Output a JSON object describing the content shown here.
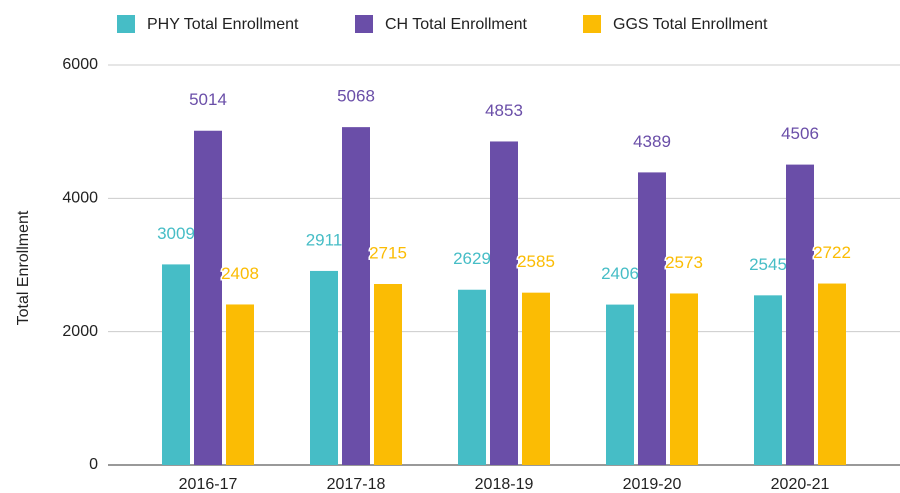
{
  "chart_data": {
    "type": "bar",
    "y_label": "Total Enrollment",
    "categories": [
      "2016-17",
      "2017-18",
      "2018-19",
      "2019-20",
      "2020-21"
    ],
    "series": [
      {
        "name": "PHY Total Enrollment",
        "color": "#46bdc6",
        "values": [
          3009,
          2911,
          2629,
          2406,
          2545
        ]
      },
      {
        "name": "CH Total Enrollment",
        "color": "#6a4ea8",
        "values": [
          5014,
          5068,
          4853,
          4389,
          4506
        ]
      },
      {
        "name": "GGS Total Enrollment",
        "color": "#fbbc04",
        "values": [
          2408,
          2715,
          2585,
          2573,
          2722
        ]
      }
    ],
    "ylim": [
      0,
      6000
    ],
    "yticks": [
      0,
      2000,
      4000,
      6000
    ],
    "grid": true,
    "legend": "top"
  }
}
